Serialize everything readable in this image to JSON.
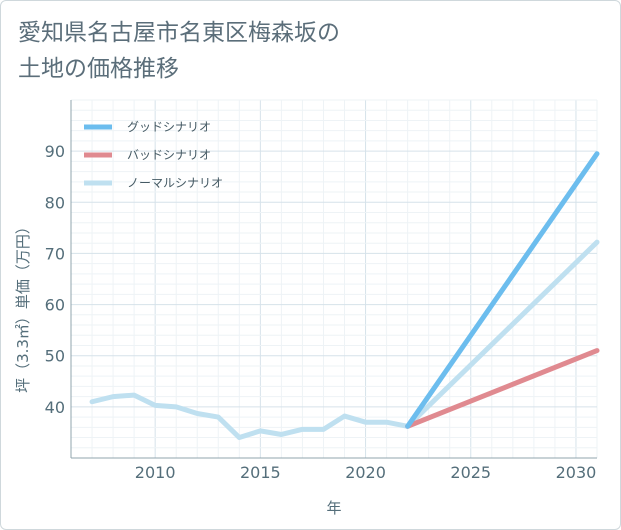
{
  "chart_data": {
    "type": "line",
    "title": "愛知県名古屋市名東区梅森坂の土地の価格推移",
    "title_lines": [
      "愛知県名古屋市名東区梅森坂の",
      "土地の価格推移"
    ],
    "xlabel": "年",
    "ylabel": "坪（3.3㎡）単価（万円）",
    "xlim": [
      2006,
      2031
    ],
    "ylim": [
      30,
      100
    ],
    "xticks": [
      2010,
      2015,
      2020,
      2025,
      2030
    ],
    "yticks": [
      40,
      50,
      60,
      70,
      80,
      90
    ],
    "grid": true,
    "legend_position": "top-left",
    "series": [
      {
        "name": "グッドシナリオ",
        "color": "#6cbdee",
        "x": [
          2022,
          2031
        ],
        "values": [
          36.2,
          89.5
        ]
      },
      {
        "name": "バッドシナリオ",
        "color": "#e08a90",
        "x": [
          2022,
          2031
        ],
        "values": [
          36.2,
          51.0
        ]
      },
      {
        "name": "ノーマルシナリオ",
        "color": "#bfe0f0",
        "x": [
          2007,
          2008,
          2009,
          2010,
          2011,
          2012,
          2013,
          2014,
          2015,
          2016,
          2017,
          2018,
          2019,
          2020,
          2021,
          2022,
          2031
        ],
        "values": [
          41.0,
          42.0,
          42.3,
          40.3,
          40.0,
          38.7,
          38.0,
          34.0,
          35.3,
          34.6,
          35.6,
          35.6,
          38.2,
          37.0,
          37.0,
          36.2,
          72.2
        ]
      }
    ]
  }
}
